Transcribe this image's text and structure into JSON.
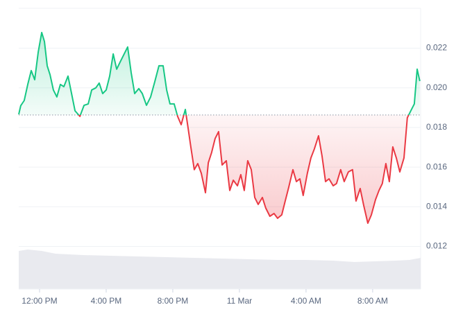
{
  "chart_data": {
    "type": "baseline",
    "xlim": [
      -1.25,
      22.88
    ],
    "xticks": [
      {
        "value": 0,
        "label": "12:00 PM"
      },
      {
        "value": 4,
        "label": "4:00 PM"
      },
      {
        "value": 8,
        "label": "8:00 PM"
      },
      {
        "value": 12,
        "label": "11 Mar"
      },
      {
        "value": 16,
        "label": "4:00 AM"
      },
      {
        "value": 20,
        "label": "8:00 AM"
      }
    ],
    "ylim": [
      0.00985,
      0.02401
    ],
    "yticks": [
      0.012,
      0.014,
      0.016,
      0.018,
      {
        "value": 0.02,
        "label": "0.020"
      },
      0.022
    ],
    "grid": true,
    "baseline": 0.01863,
    "x": [
      -1.25,
      -1.13,
      -0.92,
      -0.71,
      -0.5,
      -0.29,
      -0.08,
      0.13,
      0.29,
      0.46,
      0.63,
      0.83,
      1.04,
      1.25,
      1.46,
      1.71,
      1.92,
      2.13,
      2.42,
      2.67,
      2.92,
      3.13,
      3.38,
      3.58,
      3.79,
      4.0,
      4.21,
      4.42,
      4.63,
      4.83,
      5.04,
      5.29,
      5.5,
      5.71,
      5.96,
      6.17,
      6.42,
      6.67,
      6.92,
      7.17,
      7.42,
      7.63,
      7.83,
      8.08,
      8.29,
      8.5,
      8.75,
      8.92,
      9.08,
      9.29,
      9.5,
      9.71,
      9.96,
      10.13,
      10.33,
      10.54,
      10.75,
      10.96,
      11.21,
      11.42,
      11.63,
      11.88,
      12.08,
      12.29,
      12.5,
      12.71,
      12.92,
      13.13,
      13.38,
      13.58,
      13.83,
      14.08,
      14.29,
      14.54,
      14.75,
      14.96,
      15.21,
      15.42,
      15.63,
      15.83,
      16.08,
      16.29,
      16.5,
      16.75,
      16.96,
      17.17,
      17.38,
      17.63,
      17.83,
      18.08,
      18.29,
      18.54,
      18.79,
      19.0,
      19.25,
      19.46,
      19.71,
      19.92,
      20.17,
      20.38,
      20.58,
      20.79,
      21.0,
      21.21,
      21.42,
      21.63,
      21.88,
      22.08,
      22.29,
      22.5,
      22.67,
      22.83
    ],
    "series": [
      {
        "color": "#16c784",
        "down_color": "#ea3943",
        "values": [
          0.01866,
          0.0191,
          0.01936,
          0.02017,
          0.02087,
          0.02041,
          0.02181,
          0.02279,
          0.02234,
          0.02111,
          0.02066,
          0.01989,
          0.01954,
          0.02017,
          0.02006,
          0.02059,
          0.01971,
          0.01884,
          0.01856,
          0.01912,
          0.01919,
          0.01989,
          0.02,
          0.02024,
          0.01971,
          0.01989,
          0.02059,
          0.02171,
          0.02094,
          0.02129,
          0.02164,
          0.02206,
          0.02076,
          0.01971,
          0.01996,
          0.01971,
          0.01912,
          0.01954,
          0.02031,
          0.02111,
          0.02111,
          0.01989,
          0.01919,
          0.01919,
          0.01856,
          0.01814,
          0.01891,
          0.01797,
          0.01702,
          0.01587,
          0.01618,
          0.01569,
          0.01471,
          0.01622,
          0.01674,
          0.01744,
          0.01779,
          0.01611,
          0.01632,
          0.01482,
          0.01534,
          0.01506,
          0.01562,
          0.01482,
          0.01632,
          0.01587,
          0.01447,
          0.01412,
          0.01447,
          0.01394,
          0.01352,
          0.01366,
          0.01342,
          0.01359,
          0.01429,
          0.01499,
          0.01587,
          0.01527,
          0.01541,
          0.01457,
          0.01569,
          0.01646,
          0.01692,
          0.01758,
          0.01657,
          0.01527,
          0.01541,
          0.01506,
          0.01517,
          0.01587,
          0.01527,
          0.01576,
          0.01587,
          0.01429,
          0.01492,
          0.01408,
          0.01317,
          0.01359,
          0.01436,
          0.01482,
          0.01517,
          0.01618,
          0.01527,
          0.01702,
          0.01646,
          0.01576,
          0.01646,
          0.01849,
          0.01884,
          0.01919,
          0.02094,
          0.02034
        ]
      }
    ]
  }
}
